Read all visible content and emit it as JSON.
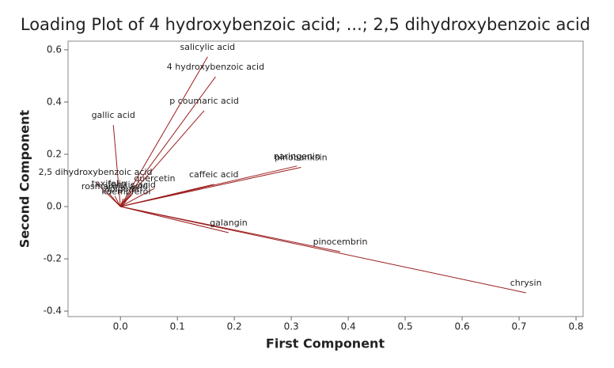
{
  "chart_data": {
    "type": "loading",
    "title": "Loading Plot of 4 hydroxybenzoic acid; ...; 2,5 dihydroxybenzoic acid",
    "x_label": "First Component",
    "y_label": "Second Component",
    "color": "#9b1c1c",
    "categories": [
      "chrysin",
      "pinocembrin",
      "galangin",
      "pinobanksin",
      "naringenin",
      "caffeic acid",
      "quercetin",
      "salicylic acid",
      "4 hydroxybenzoic acid",
      "p coumaric acid",
      "gallic acid",
      "2,5 dihydroxybenzoic acid",
      "rosmarinic acid",
      "taxifolin",
      "kaempferol",
      "ferulic acid",
      "apigenin"
    ],
    "x": [
      0.712,
      0.386,
      0.19,
      0.317,
      0.31,
      0.164,
      0.06,
      0.153,
      0.167,
      0.147,
      -0.0125,
      -0.044,
      -0.01,
      -0.02,
      0.01,
      0.02,
      0.005
    ],
    "values": [
      -0.33,
      -0.173,
      -0.1,
      0.15,
      0.155,
      0.085,
      0.07,
      0.573,
      0.497,
      0.367,
      0.312,
      0.094,
      0.04,
      0.05,
      0.02,
      0.045,
      0.03
    ],
    "xlim": [
      -0.092,
      0.8125
    ],
    "ylim": [
      -0.421,
      0.633
    ],
    "xticks": [
      {
        "value": 0,
        "label": "0.0"
      },
      0.1,
      0.2,
      0.3,
      0.4,
      0.5,
      0.6,
      0.7,
      0.8
    ],
    "yticks": [
      -0.4,
      -0.2,
      {
        "value": 0,
        "label": "0.0"
      },
      0.2,
      0.4,
      0.6
    ]
  }
}
